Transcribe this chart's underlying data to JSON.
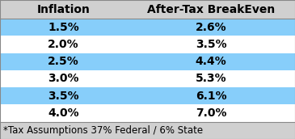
{
  "col1_header": "Inflation",
  "col2_header": "After-Tax BreakEven",
  "rows": [
    [
      "1.5%",
      "2.6%"
    ],
    [
      "2.0%",
      "3.5%"
    ],
    [
      "2.5%",
      "4.4%"
    ],
    [
      "3.0%",
      "5.3%"
    ],
    [
      "3.5%",
      "6.1%"
    ],
    [
      "4.0%",
      "7.0%"
    ]
  ],
  "footnote": "*Tax Assumptions 37% Federal / 6% State",
  "header_bg": "#d0d0d0",
  "row_bg_alt": "#87CEFA",
  "row_bg_white": "#ffffff",
  "footer_bg": "#d0d0d0",
  "header_text_color": "#000000",
  "row_text_color": "#000000",
  "footnote_text_color": "#000000",
  "border_color": "#aaaaaa",
  "header_fontsize": 10,
  "row_fontsize": 10,
  "footnote_fontsize": 8.5,
  "fig_width": 3.65,
  "fig_height": 1.72,
  "dpi": 100,
  "col_split": 0.43
}
